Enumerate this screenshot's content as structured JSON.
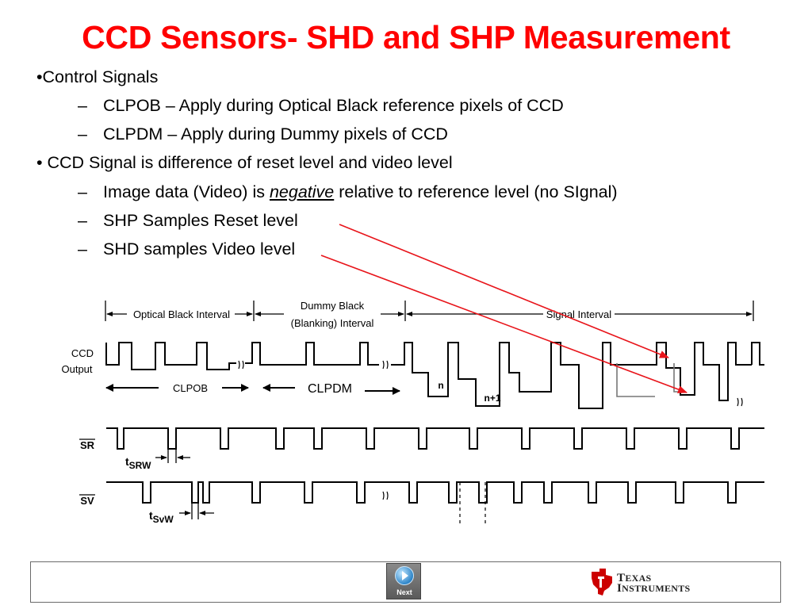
{
  "title": "CCD Sensors- SHD and SHP Measurement",
  "bullets": {
    "b1": "•Control Signals",
    "b1_1": "CLPOB – Apply during Optical Black reference pixels of CCD",
    "b1_2": "CLPDM – Apply during Dummy pixels of CCD",
    "b2": "• CCD Signal is difference of reset level and video level",
    "b2_1_pre": "Image data (Video) is ",
    "b2_1_em": "negative",
    "b2_1_post": " relative to reference level (no SIgnal)",
    "b2_2": "SHP Samples Reset level",
    "b2_3": "SHD samples Video level",
    "dash": "–"
  },
  "diagram": {
    "interval_optical_black": "Optical Black Interval",
    "interval_dummy_black_1": "Dummy Black",
    "interval_dummy_black_2": "(Blanking) Interval",
    "interval_signal": "Signal Interval",
    "ccd_label_1": "CCD",
    "ccd_label_2": "Output",
    "pixel_n": "n",
    "pixel_n1": "n+1",
    "clpob": "CLPOB",
    "clpdm": "CLPDM",
    "sr_label": "SR",
    "sv_label": "SV",
    "tsrw_t": "t",
    "tsrw_sub": "SRW",
    "tsvw_t": "t",
    "tsvw_sub": "SvW",
    "annotation_color": "#e8141a",
    "waveform_color": "#000000"
  },
  "footer": {
    "next_label": "Next",
    "logo_line1_big": "T",
    "logo_line1": "EXAS",
    "logo_line2_big": "I",
    "logo_line2": "NSTRUMENTS"
  }
}
